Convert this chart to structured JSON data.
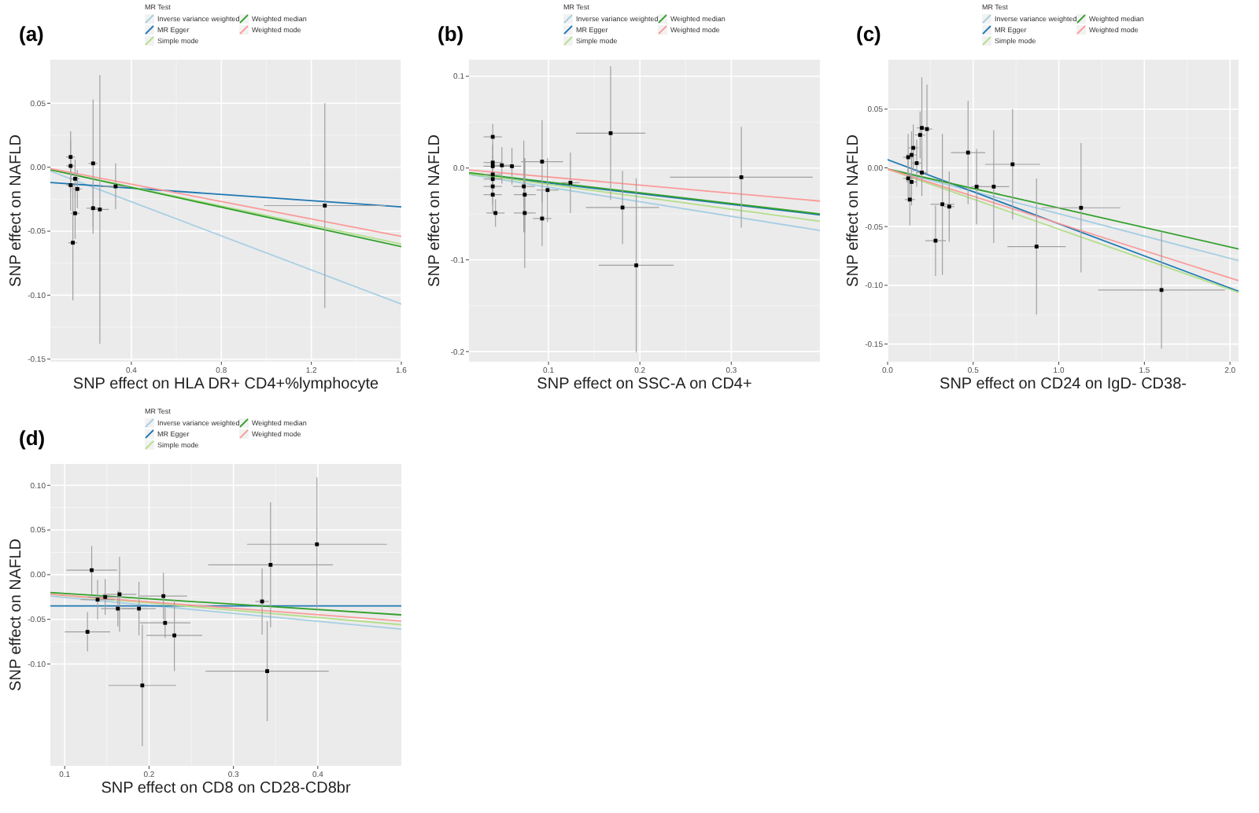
{
  "chart_data": [
    {
      "type": "scatter",
      "title": "(a)",
      "xlabel": "SNP effect on HLA DR+ CD4+%lymphocyte",
      "ylabel": "SNP effect on NAFLD",
      "legend_title": "MR Test",
      "legend": "top",
      "grid": true,
      "xlim": [
        0.04,
        1.6
      ],
      "ylim": [
        -0.152,
        0.084
      ],
      "xticks": [
        0.4,
        0.8,
        1.2,
        1.6
      ],
      "yticks": [
        0.05,
        {
          "value": 0,
          "label": "0.00"
        },
        -0.05,
        {
          "value": -0.1,
          "label": "-0.10"
        },
        -0.15
      ],
      "series": [
        {
          "marker": "square",
          "color": "#000000",
          "x": [
            0.13,
            0.13,
            0.13,
            0.15,
            0.16,
            0.15,
            0.14,
            0.23,
            0.23,
            0.26,
            0.33,
            1.26
          ],
          "values": [
            0.008,
            0.001,
            -0.014,
            -0.009,
            -0.017,
            -0.036,
            -0.059,
            0.003,
            -0.032,
            -0.033,
            -0.015,
            -0.03
          ],
          "errors": [
            0.02,
            0.02,
            0.02,
            0.015,
            0.015,
            0.02,
            0.045,
            0.05,
            0.02,
            0.105,
            0.018,
            0.08
          ],
          "xerrors": [
            0.02,
            0.02,
            0.02,
            0.02,
            0.02,
            0.02,
            0.02,
            0.02,
            0.03,
            0.04,
            0.06,
            0.27
          ]
        },
        {
          "type": "line",
          "name": "Inverse variance weighted",
          "color": "#a6cee3",
          "x": [
            0.04,
            1.6
          ],
          "values": [
            -0.003,
            -0.107
          ]
        },
        {
          "type": "line",
          "name": "MR Egger",
          "color": "#1f78b4",
          "x": [
            0.04,
            1.6
          ],
          "values": [
            -0.012,
            -0.031
          ]
        },
        {
          "type": "line",
          "name": "Simple mode",
          "color": "#b2df8a",
          "x": [
            0.04,
            1.6
          ],
          "values": [
            -0.002,
            -0.06
          ]
        },
        {
          "type": "line",
          "name": "Weighted median",
          "color": "#33a02c",
          "x": [
            0.04,
            1.6
          ],
          "values": [
            -0.002,
            -0.062
          ]
        },
        {
          "type": "line",
          "name": "Weighted mode",
          "color": "#fb9a99",
          "x": [
            0.04,
            1.6
          ],
          "values": [
            -0.001,
            -0.054
          ]
        }
      ]
    },
    {
      "type": "scatter",
      "title": "(b)",
      "xlabel": "SNP effect on SSC-A on CD4+",
      "ylabel": "SNP effect on NAFLD",
      "legend_title": "MR Test",
      "legend": "top",
      "grid": true,
      "xlim": [
        0.013,
        0.397
      ],
      "ylim": [
        -0.211,
        0.118
      ],
      "xticks": [
        0.1,
        0.2,
        0.3
      ],
      "yticks": [
        0.1,
        {
          "value": 0,
          "label": "0.0"
        },
        -0.1,
        -0.2
      ],
      "series": [
        {
          "marker": "square",
          "color": "#000000",
          "x": [
            0.039,
            0.039,
            0.039,
            0.039,
            0.039,
            0.039,
            0.039,
            0.042,
            0.049,
            0.06,
            0.073,
            0.074,
            0.074,
            0.093,
            0.093,
            0.099,
            0.124,
            0.168,
            0.181,
            0.196,
            0.311
          ],
          "values": [
            0.034,
            0.006,
            0.002,
            -0.007,
            -0.012,
            -0.02,
            -0.029,
            -0.049,
            0.003,
            0.002,
            -0.02,
            -0.029,
            -0.049,
            0.007,
            -0.055,
            -0.024,
            -0.016,
            0.038,
            -0.043,
            -0.106,
            -0.01
          ],
          "errors": [
            0.014,
            0.02,
            0.02,
            0.02,
            0.02,
            0.02,
            0.02,
            0.015,
            0.02,
            0.02,
            0.05,
            0.04,
            0.06,
            0.045,
            0.03,
            0.035,
            0.033,
            0.073,
            0.04,
            0.095,
            0.055
          ],
          "xerrors": [
            0.01,
            0.01,
            0.01,
            0.01,
            0.01,
            0.01,
            0.01,
            0.01,
            0.01,
            0.01,
            0.012,
            0.012,
            0.012,
            0.023,
            0.01,
            0.012,
            0.01,
            0.038,
            0.04,
            0.041,
            0.078
          ]
        },
        {
          "type": "line",
          "name": "Inverse variance weighted",
          "color": "#a6cee3",
          "x": [
            0.013,
            0.397
          ],
          "values": [
            -0.007,
            -0.068
          ]
        },
        {
          "type": "line",
          "name": "MR Egger",
          "color": "#1f78b4",
          "x": [
            0.013,
            0.397
          ],
          "values": [
            -0.006,
            -0.051
          ]
        },
        {
          "type": "line",
          "name": "Simple mode",
          "color": "#b2df8a",
          "x": [
            0.013,
            0.397
          ],
          "values": [
            -0.006,
            -0.058
          ]
        },
        {
          "type": "line",
          "name": "Weighted median",
          "color": "#33a02c",
          "x": [
            0.013,
            0.397
          ],
          "values": [
            -0.005,
            -0.05
          ]
        },
        {
          "type": "line",
          "name": "Weighted mode",
          "color": "#fb9a99",
          "x": [
            0.013,
            0.397
          ],
          "values": [
            -0.002,
            -0.036
          ]
        }
      ]
    },
    {
      "type": "scatter",
      "title": "(c)",
      "xlabel": "SNP effect on CD24 on IgD- CD38-",
      "ylabel": "SNP effect on NAFLD",
      "legend_title": "MR Test",
      "legend": "top",
      "grid": true,
      "xlim": [
        0,
        2.05
      ],
      "ylim": [
        -0.165,
        0.092
      ],
      "xticks": [
        {
          "value": 0,
          "label": "0.0"
        },
        0.5,
        {
          "value": 1,
          "label": "1.0"
        },
        1.5,
        {
          "value": 2,
          "label": "2.0"
        }
      ],
      "yticks": [
        0.05,
        {
          "value": 0,
          "label": "0.00"
        },
        -0.05,
        {
          "value": -0.1,
          "label": "-0.10"
        },
        -0.15
      ],
      "series": [
        {
          "marker": "square",
          "color": "#000000",
          "x": [
            0.12,
            0.14,
            0.15,
            0.19,
            0.2,
            0.23,
            0.17,
            0.2,
            0.12,
            0.14,
            0.13,
            0.32,
            0.36,
            0.28,
            0.47,
            0.52,
            0.62,
            0.73,
            0.87,
            1.13,
            1.6
          ],
          "values": [
            0.009,
            0.011,
            0.017,
            0.028,
            0.034,
            0.033,
            0.004,
            -0.004,
            -0.009,
            -0.012,
            -0.027,
            -0.031,
            -0.033,
            -0.062,
            0.013,
            -0.016,
            -0.016,
            0.003,
            -0.067,
            -0.034,
            -0.104
          ],
          "errors": [
            0.02,
            0.02,
            0.02,
            0.02,
            0.043,
            0.038,
            0.02,
            0.02,
            0.02,
            0.02,
            0.022,
            0.06,
            0.03,
            0.03,
            0.044,
            0.032,
            0.048,
            0.047,
            0.058,
            0.055,
            0.05
          ],
          "xerrors": [
            0.03,
            0.03,
            0.03,
            0.03,
            0.03,
            0.03,
            0.03,
            0.03,
            0.03,
            0.03,
            0.03,
            0.07,
            0.03,
            0.06,
            0.1,
            0.03,
            0.09,
            0.16,
            0.17,
            0.23,
            0.37
          ]
        },
        {
          "type": "line",
          "name": "Inverse variance weighted",
          "color": "#a6cee3",
          "x": [
            0,
            2.05
          ],
          "values": [
            -0.001,
            -0.079
          ]
        },
        {
          "type": "line",
          "name": "MR Egger",
          "color": "#1f78b4",
          "x": [
            0,
            2.05
          ],
          "values": [
            0.007,
            -0.105
          ]
        },
        {
          "type": "line",
          "name": "Simple mode",
          "color": "#b2df8a",
          "x": [
            0,
            2.05
          ],
          "values": [
            -0.001,
            -0.106
          ]
        },
        {
          "type": "line",
          "name": "Weighted median",
          "color": "#33a02c",
          "x": [
            0,
            2.05
          ],
          "values": [
            -0.001,
            -0.069
          ]
        },
        {
          "type": "line",
          "name": "Weighted mode",
          "color": "#fb9a99",
          "x": [
            0,
            2.05
          ],
          "values": [
            -0.001,
            -0.096
          ]
        }
      ]
    },
    {
      "type": "scatter",
      "title": "(d)",
      "xlabel": "SNP effect on CD8 on CD28-CD8br",
      "ylabel": "SNP effect on NAFLD",
      "legend_title": "MR Test",
      "legend": "top",
      "grid": true,
      "xlim": [
        0.083,
        0.499
      ],
      "ylim": [
        -0.214,
        0.124
      ],
      "xticks": [
        0.1,
        0.2,
        0.3,
        0.4
      ],
      "yticks": [
        {
          "value": 0.1,
          "label": "0.10"
        },
        0.05,
        {
          "value": 0,
          "label": "0.00"
        },
        -0.05,
        {
          "value": -0.1,
          "label": "-0.10"
        }
      ],
      "series": [
        {
          "marker": "square",
          "color": "#000000",
          "x": [
            0.132,
            0.139,
            0.148,
            0.165,
            0.163,
            0.188,
            0.127,
            0.192,
            0.217,
            0.219,
            0.23,
            0.334,
            0.344,
            0.399,
            0.34
          ],
          "values": [
            0.005,
            -0.028,
            -0.025,
            -0.022,
            -0.038,
            -0.038,
            -0.064,
            -0.124,
            -0.024,
            -0.054,
            -0.068,
            -0.03,
            0.011,
            0.034,
            -0.108
          ],
          "errors": [
            0.027,
            0.022,
            0.02,
            0.042,
            0.02,
            0.03,
            0.022,
            0.068,
            0.026,
            0.017,
            0.04,
            0.037,
            0.07,
            0.075,
            0.056
          ],
          "xerrors": [
            0.03,
            0.02,
            0.02,
            0.02,
            0.02,
            0.02,
            0.027,
            0.04,
            0.028,
            0.03,
            0.033,
            0.008,
            0.074,
            0.083,
            0.073
          ]
        },
        {
          "type": "line",
          "name": "Inverse variance weighted",
          "color": "#a6cee3",
          "x": [
            0.083,
            0.499
          ],
          "values": [
            -0.024,
            -0.061
          ]
        },
        {
          "type": "line",
          "name": "MR Egger",
          "color": "#1f78b4",
          "x": [
            0.083,
            0.499
          ],
          "values": [
            -0.035,
            -0.035
          ]
        },
        {
          "type": "line",
          "name": "Simple mode",
          "color": "#b2df8a",
          "x": [
            0.083,
            0.499
          ],
          "values": [
            -0.022,
            -0.056
          ]
        },
        {
          "type": "line",
          "name": "Weighted median",
          "color": "#33a02c",
          "x": [
            0.083,
            0.499
          ],
          "values": [
            -0.02,
            -0.045
          ]
        },
        {
          "type": "line",
          "name": "Weighted mode",
          "color": "#fb9a99",
          "x": [
            0.083,
            0.499
          ],
          "values": [
            -0.022,
            -0.052
          ]
        }
      ]
    }
  ]
}
